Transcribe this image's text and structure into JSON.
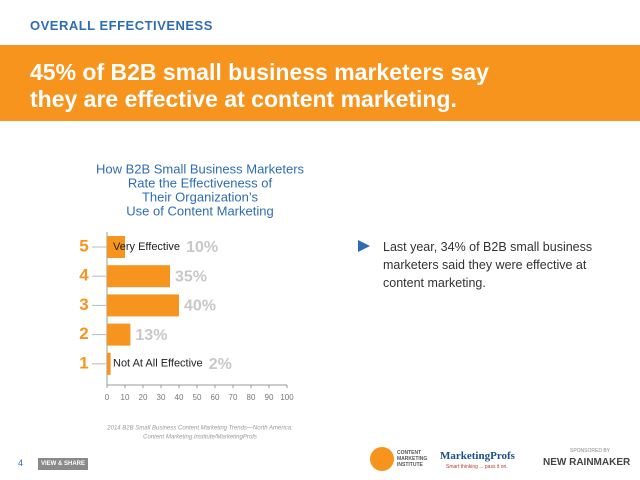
{
  "header": "OVERALL EFFECTIVENESS",
  "headline": [
    "45% of B2B small business marketers say",
    "they are effective at content marketing."
  ],
  "chart_data": {
    "type": "bar",
    "orientation": "horizontal",
    "title": [
      "How B2B Small Business Marketers",
      "Rate the Effectiveness of",
      "Their Organization’s",
      "Use of Content Marketing"
    ],
    "categories": [
      "5",
      "4",
      "3",
      "2",
      "1"
    ],
    "category_labels": [
      "Very Effective",
      null,
      null,
      null,
      "Not At All Effective"
    ],
    "values": [
      10,
      35,
      40,
      13,
      2
    ],
    "value_labels": [
      "10%",
      "35%",
      "40%",
      "13%",
      "2%"
    ],
    "color": "#f7941d",
    "xlim": [
      0,
      100
    ],
    "xticks": [
      0,
      10,
      20,
      30,
      40,
      50,
      60,
      70,
      80,
      90,
      100
    ],
    "grid": false,
    "source": [
      "2014 B2B Small Business Content Marketing Trends—North America:",
      "Content Marketing Institute/MarketingProfs"
    ]
  },
  "bullet": "Last year, 34% of B2B small business marketers said they were effective at content marketing.",
  "footer": {
    "page": "4",
    "share": "VIEW & SHARE",
    "cmi": [
      "CONTENT",
      "MARKETING",
      "INSTITUTE"
    ],
    "mp": "MarketingProfs",
    "mp_tagline": "Smart thinking ... pass it on.",
    "sponsor": "SPONSORED BY",
    "rainmaker": "NEW RAINMAKER"
  }
}
